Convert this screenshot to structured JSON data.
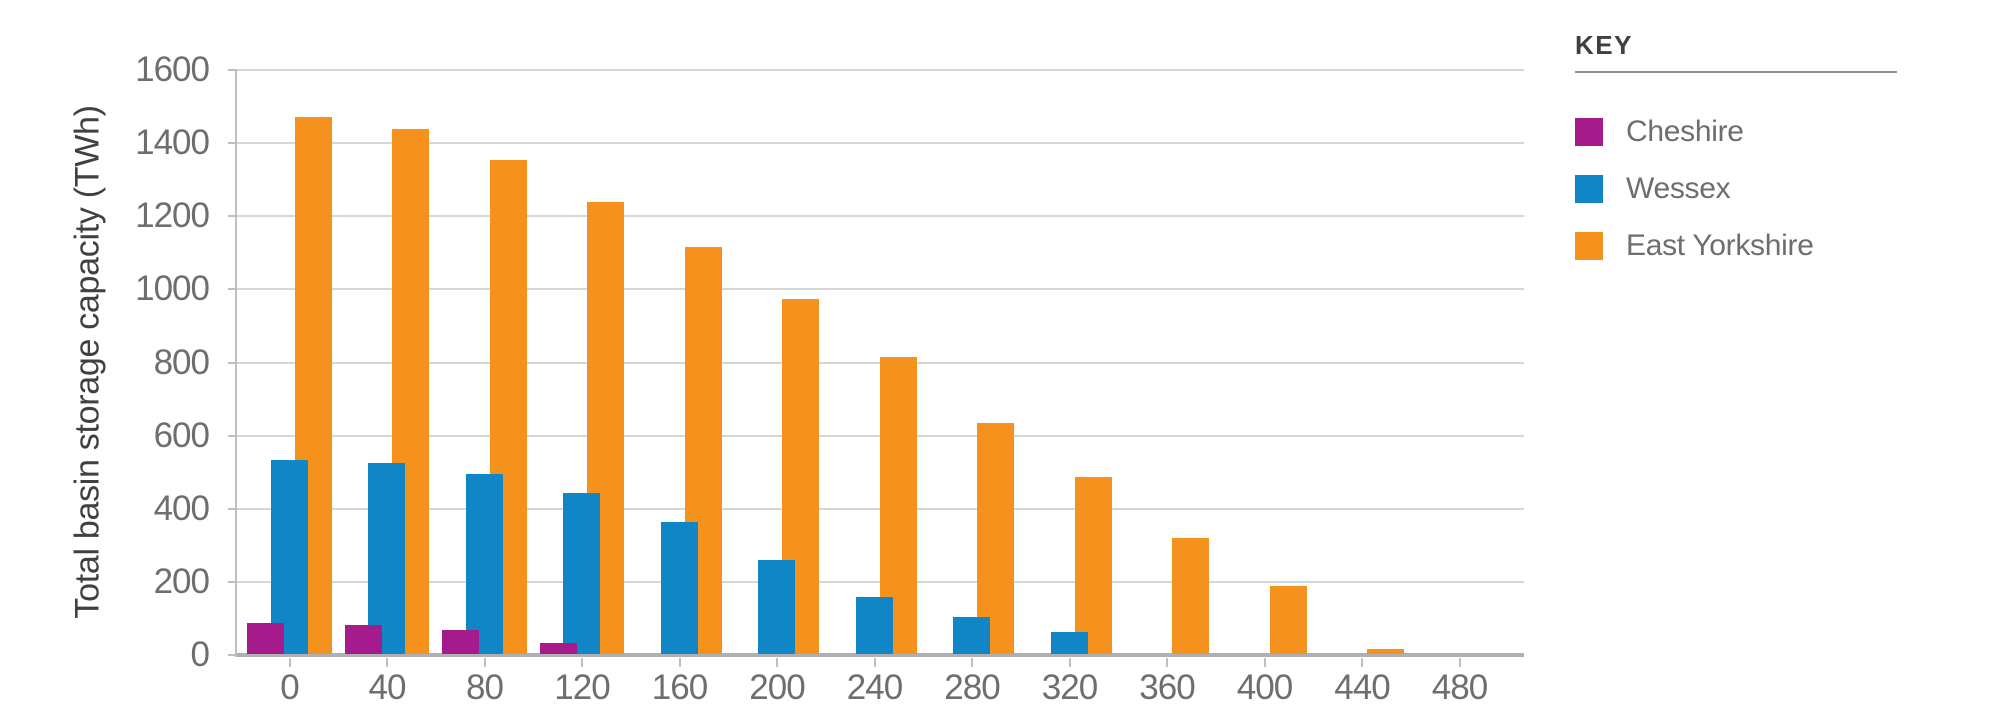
{
  "chart_data": {
    "type": "bar",
    "title": "",
    "xlabel": "",
    "ylabel": "Total basin storage capacity (TWh)",
    "categories": [
      "0",
      "40",
      "80",
      "120",
      "160",
      "200",
      "240",
      "280",
      "320",
      "360",
      "400",
      "440",
      "480"
    ],
    "series": [
      {
        "name": "Cheshire",
        "color": "#a61b8c",
        "values": [
          85,
          80,
          65,
          30,
          0,
          0,
          0,
          0,
          0,
          0,
          0,
          0,
          0
        ]
      },
      {
        "name": "Wessex",
        "color": "#1186c7",
        "values": [
          530,
          522,
          492,
          440,
          362,
          258,
          155,
          100,
          60,
          0,
          0,
          0,
          0
        ]
      },
      {
        "name": "East Yorkshire",
        "color": "#f5921e",
        "values": [
          1470,
          1437,
          1350,
          1235,
          1113,
          970,
          812,
          632,
          485,
          318,
          186,
          15,
          0
        ]
      }
    ],
    "ylim": [
      0,
      1600
    ],
    "ytick_step": 200,
    "grid": "horizontal",
    "legend_position": "top-right"
  },
  "legend": {
    "title": "KEY"
  },
  "colors": {
    "grid": "#d6d7d9",
    "axis": "#bdbfc1",
    "baseline": "#aeb0b3",
    "tick_text": "#6d6e71",
    "axis_title_text": "#3f4041"
  }
}
